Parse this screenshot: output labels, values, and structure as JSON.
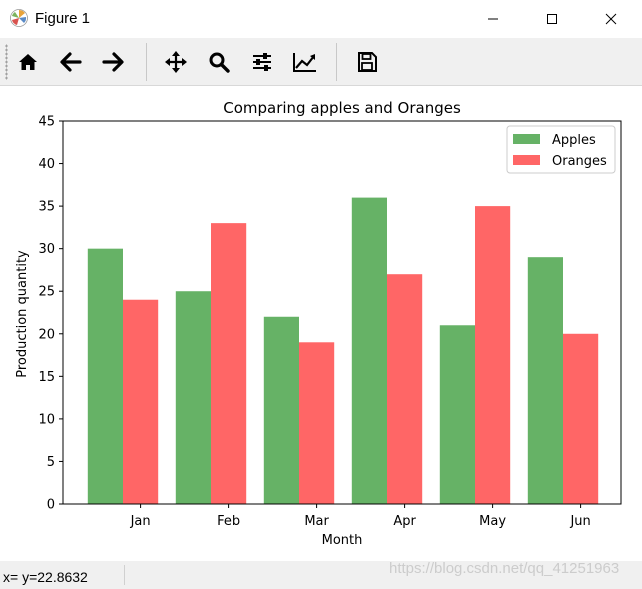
{
  "window": {
    "title": "Figure 1",
    "minimize_icon": "minimize-icon",
    "maximize_icon": "maximize-icon",
    "close_icon": "close-icon"
  },
  "toolbar": {
    "buttons": [
      {
        "name": "home-button",
        "icon": "home-icon"
      },
      {
        "name": "back-button",
        "icon": "arrow-left-icon"
      },
      {
        "name": "forward-button",
        "icon": "arrow-right-icon"
      },
      {
        "name": "pan-button",
        "icon": "move-icon"
      },
      {
        "name": "zoom-button",
        "icon": "search-icon"
      },
      {
        "name": "configure-subplots-button",
        "icon": "sliders-icon"
      },
      {
        "name": "edit-axis-button",
        "icon": "line-chart-icon"
      },
      {
        "name": "save-button",
        "icon": "floppy-disk-icon"
      }
    ]
  },
  "status": {
    "text": "x= y=22.8632",
    "watermark": "https://blog.csdn.net/qq_41251963"
  },
  "chart_data": {
    "type": "bar",
    "title": "Comparing apples and Oranges",
    "xlabel": "Month",
    "ylabel": "Production quantity",
    "categories": [
      "Jan",
      "Feb",
      "Mar",
      "Apr",
      "May",
      "Jun"
    ],
    "series": [
      {
        "name": "Apples",
        "values": [
          30,
          25,
          22,
          36,
          21,
          29
        ],
        "color": "#66b266"
      },
      {
        "name": "Oranges",
        "values": [
          24,
          33,
          19,
          27,
          35,
          20
        ],
        "color": "#ff6666"
      }
    ],
    "ylim": [
      0,
      45
    ],
    "yticks": [
      0,
      5,
      10,
      15,
      20,
      25,
      30,
      35,
      40,
      45
    ],
    "grid": false,
    "legend_position": "top-right"
  }
}
